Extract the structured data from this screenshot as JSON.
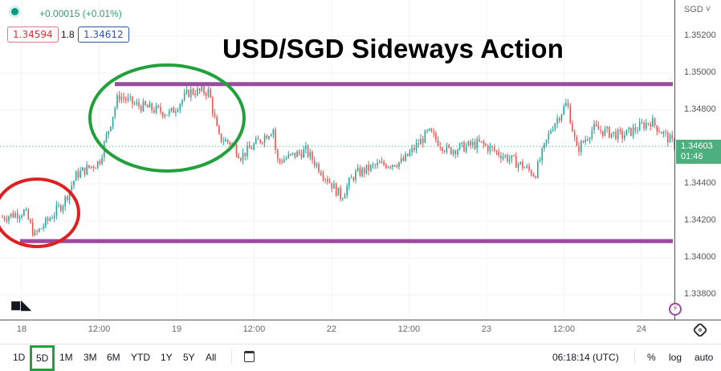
{
  "header": {
    "change": "+0.00015 (+0.01%)",
    "bid": "1.34594",
    "spread": "1.8",
    "ask": "1.34612",
    "currency": "SGD"
  },
  "bottom_bar": {
    "ranges": [
      "1D",
      "5D",
      "1M",
      "3M",
      "6M",
      "YTD",
      "1Y",
      "5Y",
      "All"
    ],
    "selected": "5D",
    "clock": "06:18:14 (UTC)",
    "percent": "%",
    "log": "log",
    "auto": "auto"
  },
  "colors": {
    "up": "#26a69a",
    "down": "#ef5350",
    "level_line": "#9c4a9e",
    "red_circle": "#e02020",
    "green_circle": "#22a03c",
    "current_price_bg": "#4caf7d",
    "selected_range_border": "#22a03c"
  },
  "chart_data": {
    "type": "candlestick",
    "title": "USD/SGD Sideways Action",
    "y_ticks": [
      "1.35200",
      "1.35000",
      "1.34800",
      "1.34400",
      "1.34200",
      "1.34000",
      "1.33800"
    ],
    "ylim": [
      1.3368,
      1.3532
    ],
    "x_ticks": [
      {
        "label": "18",
        "time": "18 00:00"
      },
      {
        "label": "12:00",
        "time": "18 12:00"
      },
      {
        "label": "19",
        "time": "19 00:00"
      },
      {
        "label": "12:00",
        "time": "19 12:00"
      },
      {
        "label": "22",
        "time": "22 00:00"
      },
      {
        "label": "12:00",
        "time": "22 12:00"
      },
      {
        "label": "23",
        "time": "23 00:00"
      },
      {
        "label": "12:00",
        "time": "23 12:00"
      },
      {
        "label": "24",
        "time": "24 00:00"
      }
    ],
    "current_price": {
      "value": "1.34603",
      "countdown": "01:46"
    },
    "price_path": [
      [
        "17 21:00",
        1.3422
      ],
      [
        "18 00:30",
        1.3425
      ],
      [
        "18 02:00",
        1.3412
      ],
      [
        "18 06:30",
        1.343
      ],
      [
        "18 08:30",
        1.3445
      ],
      [
        "18 12:00",
        1.3452
      ],
      [
        "18 15:00",
        1.3488
      ],
      [
        "18 17:30",
        1.3483
      ],
      [
        "18 23:00",
        1.3478
      ],
      [
        "19 02:00",
        1.349
      ],
      [
        "19 05:00",
        1.349
      ],
      [
        "19 06:30",
        1.3465
      ],
      [
        "19 08:30",
        1.3462
      ],
      [
        "19 10:00",
        1.3455
      ],
      [
        "19 15:00",
        1.347
      ],
      [
        "19 15:30",
        1.3452
      ],
      [
        "19 20:00",
        1.3458
      ],
      [
        "22 01:30",
        1.3433
      ],
      [
        "22 03:30",
        1.3445
      ],
      [
        "22 07:00",
        1.345
      ],
      [
        "22 11:00",
        1.3452
      ],
      [
        "22 15:00",
        1.3468
      ],
      [
        "22 18:00",
        1.3458
      ],
      [
        "22 23:00",
        1.3462
      ],
      [
        "23 05:30",
        1.345
      ],
      [
        "23 07:30",
        1.3445
      ],
      [
        "23 10:00",
        1.347
      ],
      [
        "23 12:30",
        1.3484
      ],
      [
        "23 14:00",
        1.3458
      ],
      [
        "23 16:30",
        1.347
      ],
      [
        "23 21:00",
        1.3466
      ],
      [
        "24 01:30",
        1.3474
      ],
      [
        "24 06:00",
        1.3458
      ]
    ],
    "annotations": {
      "resistance": 1.3494,
      "support": 1.3409,
      "red_circle_around": "18 00:00–18 08:00 lows",
      "green_circle_around": "18 12:00–19 09:00 highs"
    }
  }
}
